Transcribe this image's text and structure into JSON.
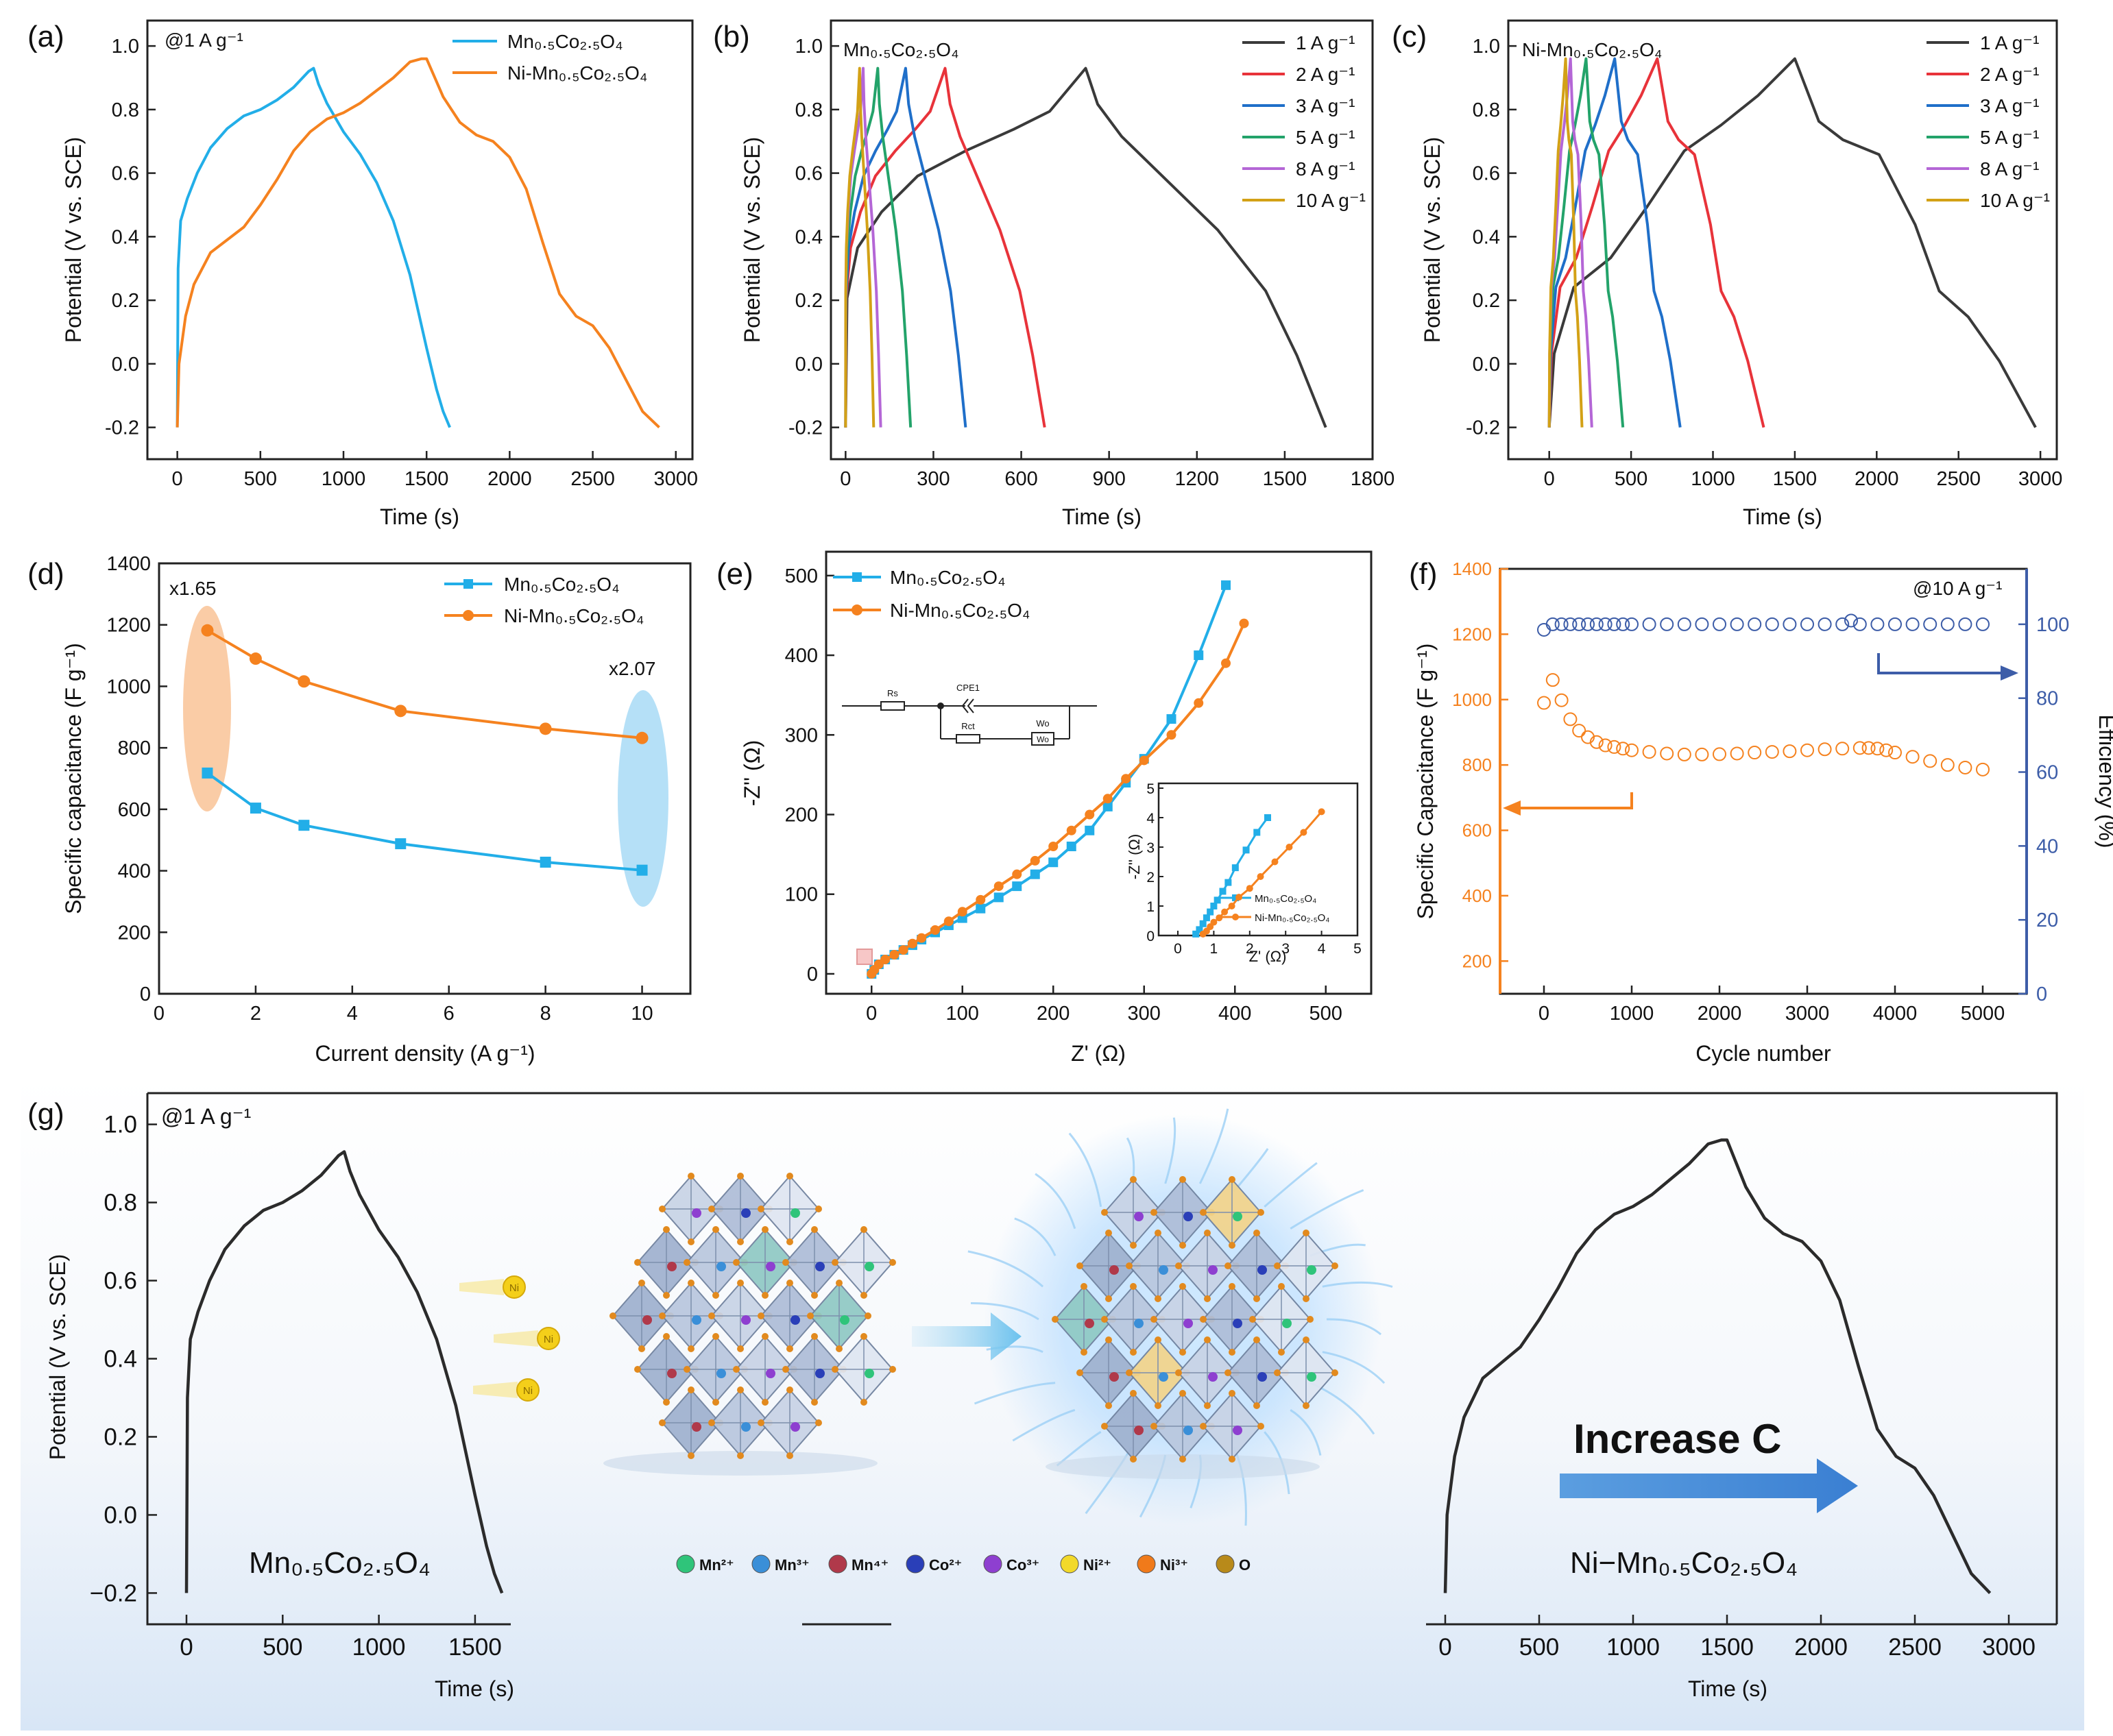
{
  "figure": {
    "colors": {
      "mco": "#22aee8",
      "nmco": "#f5821f",
      "black": "#3a3a3a",
      "red": "#e8333a",
      "blue": "#1f6fc9",
      "green": "#23a36a",
      "purple": "#b466d6",
      "gold": "#d3a116",
      "navy": "#3d5da8"
    }
  },
  "chart_data": [
    {
      "id": "a",
      "panel_label": "(a)",
      "type": "line",
      "annotation": "@1 A g⁻¹",
      "xlabel": "Time (s)",
      "ylabel": "Potential (V vs. SCE)",
      "xlim": [
        -180,
        3100
      ],
      "ylim": [
        -0.3,
        1.08
      ],
      "xticks": [
        0,
        500,
        1000,
        1500,
        2000,
        2500,
        3000
      ],
      "yticks": [
        -0.2,
        0.0,
        0.2,
        0.4,
        0.6,
        0.8,
        1.0
      ],
      "series": [
        {
          "name": "Mn₀.₅Co₂.₅O₄",
          "color": "mco",
          "x": [
            0,
            5,
            20,
            60,
            120,
            200,
            300,
            400,
            500,
            600,
            700,
            790,
            820,
            850,
            900,
            1000,
            1100,
            1200,
            1300,
            1400,
            1500,
            1560,
            1600,
            1640
          ],
          "y": [
            -0.2,
            0.3,
            0.45,
            0.52,
            0.6,
            0.68,
            0.74,
            0.78,
            0.8,
            0.83,
            0.87,
            0.92,
            0.93,
            0.88,
            0.82,
            0.73,
            0.66,
            0.57,
            0.45,
            0.28,
            0.05,
            -0.08,
            -0.15,
            -0.2
          ]
        },
        {
          "name": "Ni-Mn₀.₅Co₂.₅O₄",
          "color": "nmco",
          "x": [
            0,
            10,
            50,
            100,
            200,
            300,
            400,
            500,
            600,
            700,
            800,
            900,
            1000,
            1100,
            1200,
            1300,
            1400,
            1470,
            1500,
            1600,
            1700,
            1800,
            1900,
            2000,
            2100,
            2200,
            2300,
            2400,
            2500,
            2600,
            2700,
            2800,
            2900
          ],
          "y": [
            -0.2,
            0.0,
            0.15,
            0.25,
            0.35,
            0.39,
            0.43,
            0.5,
            0.58,
            0.67,
            0.73,
            0.77,
            0.79,
            0.82,
            0.86,
            0.9,
            0.95,
            0.96,
            0.96,
            0.84,
            0.76,
            0.72,
            0.7,
            0.65,
            0.55,
            0.38,
            0.22,
            0.15,
            0.12,
            0.05,
            -0.05,
            -0.15,
            -0.2
          ]
        }
      ]
    },
    {
      "id": "b",
      "panel_label": "(b)",
      "type": "line",
      "annotation": "Mn₀.₅Co₂.₅O₄",
      "xlabel": "Time (s)",
      "ylabel": "Potential (V vs. SCE)",
      "xlim": [
        -50,
        1800
      ],
      "ylim": [
        -0.3,
        1.08
      ],
      "xticks": [
        0,
        300,
        600,
        900,
        1200,
        1500,
        1800
      ],
      "yticks": [
        -0.2,
        0.0,
        0.2,
        0.4,
        0.6,
        0.8,
        1.0
      ],
      "legend": [
        "1 A g⁻¹",
        "2 A g⁻¹",
        "3 A g⁻¹",
        "5 A g⁻¹",
        "8 A g⁻¹",
        "10 A g⁻¹"
      ],
      "series": [
        {
          "name": "1 A g-1",
          "color": "black",
          "charge": 820,
          "total": 1640,
          "peak": 0.93
        },
        {
          "name": "2 A g-1",
          "color": "red",
          "charge": 340,
          "total": 680,
          "peak": 0.93
        },
        {
          "name": "3 A g-1",
          "color": "blue",
          "charge": 205,
          "total": 410,
          "peak": 0.93
        },
        {
          "name": "5 A g-1",
          "color": "green",
          "charge": 110,
          "total": 222,
          "peak": 0.93
        },
        {
          "name": "8 A g-1",
          "color": "purple",
          "charge": 60,
          "total": 120,
          "peak": 0.93
        },
        {
          "name": "10 A g-1",
          "color": "gold",
          "charge": 48,
          "total": 96,
          "peak": 0.93
        }
      ]
    },
    {
      "id": "c",
      "panel_label": "(c)",
      "type": "line",
      "annotation": "Ni-Mn₀.₅Co₂.₅O₄",
      "xlabel": "Time (s)",
      "ylabel": "Potential (V vs. SCE)",
      "xlim": [
        -250,
        3100
      ],
      "ylim": [
        -0.3,
        1.08
      ],
      "xticks": [
        0,
        500,
        1000,
        1500,
        2000,
        2500,
        3000
      ],
      "yticks": [
        -0.2,
        0.0,
        0.2,
        0.4,
        0.6,
        0.8,
        1.0
      ],
      "legend": [
        "1 A g⁻¹",
        "2 A g⁻¹",
        "3 A g⁻¹",
        "5 A g⁻¹",
        "8 A g⁻¹",
        "10 A g⁻¹"
      ],
      "series": [
        {
          "name": "1 A g-1",
          "color": "black",
          "charge": 1500,
          "total": 2970,
          "peak": 0.96
        },
        {
          "name": "2 A g-1",
          "color": "red",
          "charge": 660,
          "total": 1310,
          "peak": 0.96
        },
        {
          "name": "3 A g-1",
          "color": "blue",
          "charge": 400,
          "total": 800,
          "peak": 0.96
        },
        {
          "name": "5 A g-1",
          "color": "green",
          "charge": 225,
          "total": 450,
          "peak": 0.96
        },
        {
          "name": "8 A g-1",
          "color": "purple",
          "charge": 130,
          "total": 260,
          "peak": 0.96
        },
        {
          "name": "10 A g-1",
          "color": "gold",
          "charge": 100,
          "total": 200,
          "peak": 0.96
        }
      ]
    },
    {
      "id": "d",
      "panel_label": "(d)",
      "type": "line",
      "xlabel": "Current density (A g⁻¹)",
      "ylabel": "Specific capacitance (F g⁻¹)",
      "xlim": [
        0,
        11
      ],
      "ylim": [
        0,
        1400
      ],
      "xticks": [
        0,
        2,
        4,
        6,
        8,
        10
      ],
      "yticks": [
        0,
        200,
        400,
        600,
        800,
        1000,
        1200,
        1400
      ],
      "annotations": [
        "x1.65",
        "x2.07"
      ],
      "series": [
        {
          "name": "Mn₀.₅Co₂.₅O₄",
          "color": "mco",
          "marker": "square",
          "x": [
            1,
            2,
            3,
            5,
            8,
            10
          ],
          "y": [
            718,
            604,
            548,
            488,
            428,
            402
          ]
        },
        {
          "name": "Ni-Mn₀.₅Co₂.₅O₄",
          "color": "nmco",
          "marker": "circle",
          "x": [
            1,
            2,
            3,
            5,
            8,
            10
          ],
          "y": [
            1182,
            1090,
            1016,
            920,
            862,
            832
          ]
        }
      ]
    },
    {
      "id": "e",
      "panel_label": "(e)",
      "type": "scatter",
      "xlabel": "Z' (Ω)",
      "ylabel": "-Z'' (Ω)",
      "xlim": [
        -50,
        550
      ],
      "ylim": [
        -25,
        530
      ],
      "xticks": [
        0,
        100,
        200,
        300,
        400,
        500
      ],
      "yticks": [
        0,
        100,
        200,
        300,
        400,
        500
      ],
      "circuit_labels": [
        "Rs",
        "CPE1",
        "Rct",
        "Wo",
        "Wo"
      ],
      "inset": {
        "xlabel": "Z' (Ω)",
        "ylabel": "-Z'' (Ω)",
        "xlim": [
          0,
          5
        ],
        "ylim": [
          0,
          5
        ],
        "xticks": [
          0,
          1,
          2,
          3,
          4,
          5
        ],
        "yticks": [
          0,
          1,
          2,
          3,
          4,
          5
        ],
        "series": [
          {
            "name": "Mn₀.₅Co₂.₅O₄",
            "color": "mco",
            "marker": "square",
            "x": [
              0.5,
              0.6,
              0.7,
              0.8,
              0.9,
              1.0,
              1.1,
              1.25,
              1.4,
              1.6,
              1.9,
              2.2,
              2.5
            ],
            "y": [
              0.05,
              0.2,
              0.4,
              0.6,
              0.8,
              1.0,
              1.2,
              1.5,
              1.8,
              2.3,
              2.9,
              3.5,
              4.0
            ]
          },
          {
            "name": "Ni-Mn₀.₅Co₂.₅O₄",
            "color": "nmco",
            "marker": "circle",
            "x": [
              0.7,
              0.8,
              0.9,
              1.0,
              1.15,
              1.3,
              1.5,
              1.7,
              2.0,
              2.3,
              2.7,
              3.1,
              3.5,
              4.0
            ],
            "y": [
              0.05,
              0.15,
              0.3,
              0.45,
              0.6,
              0.8,
              1.0,
              1.3,
              1.6,
              2.0,
              2.5,
              3.0,
              3.5,
              4.2
            ]
          }
        ]
      },
      "series": [
        {
          "name": "Mn₀.₅Co₂.₅O₄",
          "color": "mco",
          "marker": "square",
          "x": [
            0,
            3,
            8,
            15,
            25,
            35,
            45,
            55,
            70,
            85,
            100,
            120,
            140,
            160,
            180,
            200,
            220,
            240,
            260,
            280,
            300,
            330,
            360,
            390
          ],
          "y": [
            0,
            5,
            12,
            18,
            24,
            30,
            36,
            43,
            52,
            61,
            70,
            82,
            96,
            110,
            125,
            140,
            160,
            180,
            210,
            240,
            270,
            320,
            400,
            488
          ]
        },
        {
          "name": "Ni-Mn₀.₅Co₂.₅O₄",
          "color": "nmco",
          "marker": "circle",
          "x": [
            0,
            3,
            8,
            15,
            25,
            35,
            45,
            55,
            70,
            85,
            100,
            120,
            140,
            160,
            180,
            200,
            220,
            240,
            260,
            280,
            300,
            330,
            360,
            390,
            410
          ],
          "y": [
            0,
            5,
            12,
            18,
            24,
            30,
            38,
            45,
            55,
            66,
            78,
            93,
            110,
            125,
            142,
            160,
            180,
            200,
            220,
            245,
            268,
            300,
            340,
            390,
            440
          ]
        }
      ]
    },
    {
      "id": "f",
      "panel_label": "(f)",
      "type": "scatter",
      "annotation": "@10 A g⁻¹",
      "xlabel": "Cycle number",
      "ylabel": "Specific Capacitance (F g⁻¹)",
      "ylabel2": "Efficiency (%)",
      "xlim": [
        -500,
        5500
      ],
      "ylim": [
        100,
        1400
      ],
      "y2lim": [
        0,
        115
      ],
      "xticks": [
        0,
        1000,
        2000,
        3000,
        4000,
        5000
      ],
      "yticks": [
        200,
        400,
        600,
        800,
        1000,
        1200,
        1400
      ],
      "y2ticks": [
        0,
        20,
        40,
        60,
        80,
        100
      ],
      "series": [
        {
          "name": "capacitance",
          "color": "nmco",
          "marker": "open-circle",
          "axis": "left",
          "x": [
            0,
            100,
            200,
            300,
            400,
            500,
            600,
            700,
            800,
            900,
            1000,
            1200,
            1400,
            1600,
            1800,
            2000,
            2200,
            2400,
            2600,
            2800,
            3000,
            3200,
            3400,
            3600,
            3700,
            3800,
            3900,
            4000,
            4200,
            4400,
            4600,
            4800,
            5000
          ],
          "y": [
            990,
            1060,
            998,
            940,
            905,
            885,
            870,
            860,
            855,
            850,
            845,
            840,
            835,
            832,
            832,
            833,
            835,
            838,
            840,
            842,
            845,
            848,
            850,
            852,
            852,
            850,
            845,
            838,
            825,
            812,
            800,
            792,
            786
          ]
        },
        {
          "name": "efficiency",
          "color": "navy",
          "marker": "open-circle",
          "axis": "right",
          "x": [
            0,
            100,
            200,
            300,
            400,
            500,
            600,
            700,
            800,
            900,
            1000,
            1200,
            1400,
            1600,
            1800,
            2000,
            2200,
            2400,
            2600,
            2800,
            3000,
            3200,
            3400,
            3500,
            3600,
            3800,
            4000,
            4200,
            4400,
            4600,
            4800,
            5000
          ],
          "y": [
            98.5,
            100,
            100,
            100,
            100,
            100,
            100,
            100,
            100,
            100,
            100,
            100,
            100,
            100,
            100,
            100,
            100,
            100,
            100,
            100,
            100,
            100,
            100,
            101,
            100,
            100,
            100,
            100,
            100,
            100,
            100,
            100
          ]
        }
      ]
    },
    {
      "id": "g",
      "panel_label": "(g)",
      "type": "line",
      "annotation": "@1 A g⁻¹",
      "xlabel": "Time (s)",
      "ylabel": "Potential (V vs. SCE)",
      "ylim": [
        -0.28,
        1.08
      ],
      "yticks": [
        -0.2,
        0.0,
        0.2,
        0.4,
        0.6,
        0.8,
        1.0
      ],
      "left_xticks": [
        0,
        500,
        1000,
        1500
      ],
      "right_xticks": [
        0,
        500,
        1000,
        1500,
        2000,
        2500,
        3000
      ],
      "left_label": "Mn₀.₅Co₂.₅O₄",
      "right_label": "Ni−Mn₀.₅Co₂.₅O₄",
      "arrow_text": "Increase C",
      "ion_legend": [
        "Mn²⁺",
        "Mn³⁺",
        "Mn⁴⁺",
        "Co²⁺",
        "Co³⁺",
        "Ni²⁺",
        "Ni³⁺",
        "O"
      ],
      "ion_colors": [
        "#2fc47a",
        "#3a8fd8",
        "#b0394a",
        "#2a3fb8",
        "#8e3fd0",
        "#f2d92a",
        "#f07a1a",
        "#b88a1a"
      ],
      "projectile_label": "Ni"
    }
  ]
}
